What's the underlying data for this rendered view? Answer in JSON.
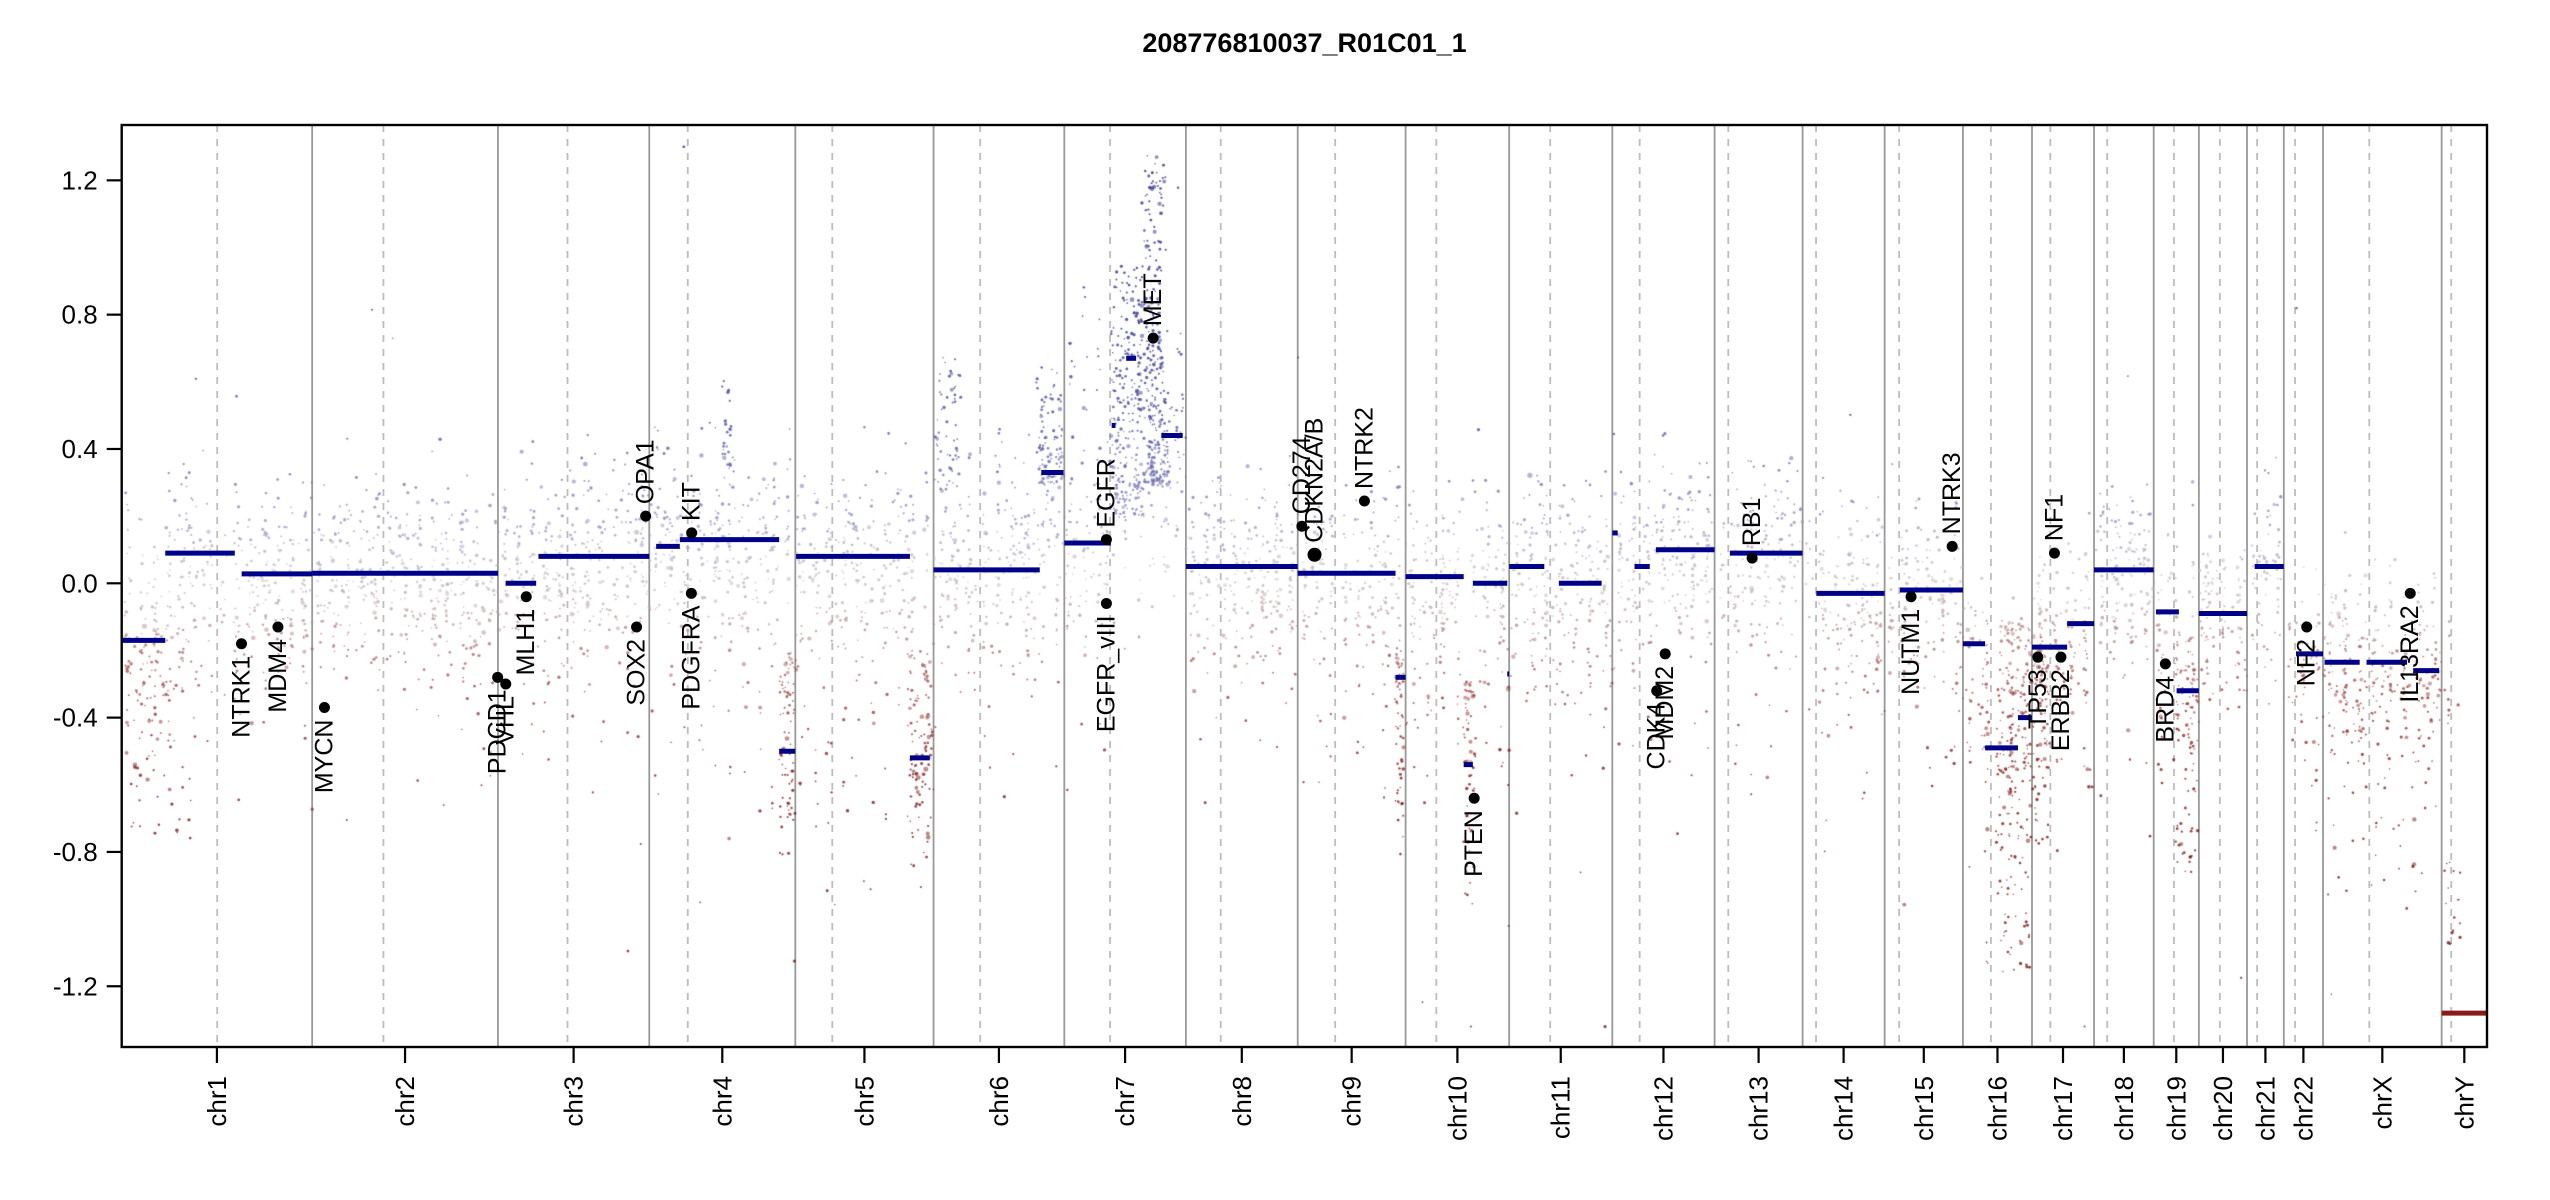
{
  "title": "208776810037_R01C01_1",
  "chart_data": {
    "type": "scatter",
    "title": "208776810037_R01C01_1",
    "xlabel": "",
    "ylabel": "",
    "ylim": [
      -1.38,
      1.37
    ],
    "grid": false,
    "y_tick_values": [
      1.2,
      0.8,
      0.4,
      0.0,
      -0.4,
      -0.8,
      -1.2
    ],
    "y_tick_labels": [
      "1.2",
      "0.8",
      "0.4",
      "0.0",
      "-0.4",
      "-0.8",
      "-1.2"
    ],
    "colors": {
      "segment": "#00008b",
      "segment_loss_deep": "#8b1a1a",
      "gene_dot": "#000000",
      "gene_label": "#000000",
      "boundary_line": "#999999",
      "centromere_line": "#bdbdbd",
      "axis": "#000000",
      "point_stops": [
        [
          -1.3,
          "#6b0b0b"
        ],
        [
          -0.6,
          "#7d1212"
        ],
        [
          -0.35,
          "#9a3838"
        ],
        [
          -0.18,
          "#ad7676"
        ],
        [
          -0.07,
          "#c2abab"
        ],
        [
          0.0,
          "#c4bcbc"
        ],
        [
          0.07,
          "#b7b4c9"
        ],
        [
          0.18,
          "#9595c2"
        ],
        [
          0.32,
          "#6c6cb2"
        ],
        [
          0.5,
          "#4444a2"
        ],
        [
          0.8,
          "#2a2a90"
        ],
        [
          1.35,
          "#1f1f85"
        ]
      ]
    },
    "genome": {
      "chromosomes": [
        {
          "name": "chr1",
          "length_mb": 249.25,
          "centromere_mb": 125.0,
          "gaps": [
            [
              120,
              144
            ]
          ]
        },
        {
          "name": "chr2",
          "length_mb": 243.2,
          "centromere_mb": 93.3,
          "gaps": [
            [
              90,
              97
            ]
          ]
        },
        {
          "name": "chr3",
          "length_mb": 198.02,
          "centromere_mb": 91.0,
          "gaps": [
            [
              88,
              94
            ]
          ]
        },
        {
          "name": "chr4",
          "length_mb": 191.15,
          "centromere_mb": 50.4,
          "gaps": [
            [
              48,
              53
            ]
          ]
        },
        {
          "name": "chr5",
          "length_mb": 180.92,
          "centromere_mb": 48.4,
          "gaps": [
            [
              45,
              51
            ]
          ]
        },
        {
          "name": "chr6",
          "length_mb": 171.12,
          "centromere_mb": 61.0,
          "gaps": [
            [
              58,
              64
            ]
          ]
        },
        {
          "name": "chr7",
          "length_mb": 159.14,
          "centromere_mb": 59.9,
          "gaps": [
            [
              57,
              62
            ]
          ]
        },
        {
          "name": "chr8",
          "length_mb": 146.36,
          "centromere_mb": 45.6,
          "gaps": [
            [
              43,
              48
            ]
          ]
        },
        {
          "name": "chr9",
          "length_mb": 141.21,
          "centromere_mb": 49.0,
          "gaps": [
            [
              39,
              66
            ]
          ]
        },
        {
          "name": "chr10",
          "length_mb": 135.53,
          "centromere_mb": 40.2,
          "gaps": [
            [
              38,
              43
            ]
          ]
        },
        {
          "name": "chr11",
          "length_mb": 135.01,
          "centromere_mb": 53.7,
          "gaps": [
            [
              51,
              56
            ]
          ]
        },
        {
          "name": "chr12",
          "length_mb": 133.85,
          "centromere_mb": 35.8,
          "gaps": [
            [
              33,
              38
            ]
          ]
        },
        {
          "name": "chr13",
          "length_mb": 115.17,
          "centromere_mb": 17.9,
          "gaps": [
            [
              0,
              19
            ]
          ]
        },
        {
          "name": "chr14",
          "length_mb": 107.35,
          "centromere_mb": 17.6,
          "gaps": [
            [
              0,
              19
            ]
          ]
        },
        {
          "name": "chr15",
          "length_mb": 102.53,
          "centromere_mb": 19.0,
          "gaps": [
            [
              0,
              20
            ]
          ]
        },
        {
          "name": "chr16",
          "length_mb": 90.35,
          "centromere_mb": 36.6,
          "gaps": [
            [
              34,
              47
            ]
          ],
          "density": 1.9
        },
        {
          "name": "chr17",
          "length_mb": 81.2,
          "centromere_mb": 24.0,
          "gaps": [
            [
              22,
              26
            ]
          ]
        },
        {
          "name": "chr18",
          "length_mb": 78.08,
          "centromere_mb": 17.2,
          "gaps": [
            [
              15,
              19
            ]
          ]
        },
        {
          "name": "chr19",
          "length_mb": 59.13,
          "centromere_mb": 26.5,
          "gaps": [
            [
              24,
              29
            ]
          ]
        },
        {
          "name": "chr20",
          "length_mb": 63.03,
          "centromere_mb": 27.5,
          "gaps": [
            [
              25,
              30
            ]
          ]
        },
        {
          "name": "chr21",
          "length_mb": 48.13,
          "centromere_mb": 13.2,
          "gaps": [
            [
              0,
              14
            ]
          ]
        },
        {
          "name": "chr22",
          "length_mb": 51.3,
          "centromere_mb": 14.7,
          "gaps": [
            [
              0,
              16
            ]
          ]
        },
        {
          "name": "chrX",
          "length_mb": 155.27,
          "centromere_mb": 60.6,
          "gaps": [
            [
              58,
              63
            ]
          ],
          "density": 2.2
        },
        {
          "name": "chrY",
          "length_mb": 59.37,
          "centromere_mb": 12.5,
          "gaps": [
            [
              0,
              2
            ],
            [
              28,
              59.4
            ]
          ],
          "density": 0
        }
      ]
    },
    "segments": [
      {
        "chr": "chr1",
        "start_mb": 0,
        "end_mb": 57,
        "value": -0.17
      },
      {
        "chr": "chr1",
        "start_mb": 57,
        "end_mb": 148,
        "value": 0.09
      },
      {
        "chr": "chr1",
        "start_mb": 157,
        "end_mb": 249.25,
        "value": 0.028
      },
      {
        "chr": "chr2",
        "start_mb": 0,
        "end_mb": 243.2,
        "value": 0.03
      },
      {
        "chr": "chr3",
        "start_mb": 10,
        "end_mb": 50,
        "value": 0.0
      },
      {
        "chr": "chr3",
        "start_mb": 53,
        "end_mb": 198,
        "value": 0.08
      },
      {
        "chr": "chr4",
        "start_mb": 9,
        "end_mb": 40,
        "value": 0.11
      },
      {
        "chr": "chr4",
        "start_mb": 40,
        "end_mb": 170,
        "value": 0.13
      },
      {
        "chr": "chr4",
        "start_mb": 170,
        "end_mb": 191.1,
        "value": -0.5
      },
      {
        "chr": "chr5",
        "start_mb": 1,
        "end_mb": 150,
        "value": 0.08
      },
      {
        "chr": "chr5",
        "start_mb": 150,
        "end_mb": 176,
        "value": -0.52
      },
      {
        "chr": "chr6",
        "start_mb": 0,
        "end_mb": 139,
        "value": 0.04
      },
      {
        "chr": "chr6",
        "start_mb": 141,
        "end_mb": 170,
        "value": 0.33
      },
      {
        "chr": "chr7",
        "start_mb": 0,
        "end_mb": 61,
        "value": 0.12
      },
      {
        "chr": "chr7",
        "start_mb": 62,
        "end_mb": 67,
        "value": 0.47
      },
      {
        "chr": "chr7",
        "start_mb": 81,
        "end_mb": 94,
        "value": 0.67
      },
      {
        "chr": "chr7",
        "start_mb": 127,
        "end_mb": 155,
        "value": 0.44
      },
      {
        "chr": "chr8",
        "start_mb": 0,
        "end_mb": 146.3,
        "value": 0.05
      },
      {
        "chr": "chr9",
        "start_mb": 0,
        "end_mb": 128,
        "value": 0.03
      },
      {
        "chr": "chr9",
        "start_mb": 128,
        "end_mb": 141.2,
        "value": -0.28
      },
      {
        "chr": "chr10",
        "start_mb": 0,
        "end_mb": 76,
        "value": 0.02
      },
      {
        "chr": "chr10",
        "start_mb": 76,
        "end_mb": 88,
        "value": -0.54
      },
      {
        "chr": "chr10",
        "start_mb": 88,
        "end_mb": 133,
        "value": 0.0
      },
      {
        "chr": "chr10",
        "start_mb": 133,
        "end_mb": 135.5,
        "value": -0.27
      },
      {
        "chr": "chr11",
        "start_mb": 0,
        "end_mb": 46,
        "value": 0.05
      },
      {
        "chr": "chr11",
        "start_mb": 65,
        "end_mb": 121,
        "value": 0.0
      },
      {
        "chr": "chr12",
        "start_mb": 0,
        "end_mb": 7,
        "value": 0.15
      },
      {
        "chr": "chr12",
        "start_mb": 29,
        "end_mb": 49,
        "value": 0.05
      },
      {
        "chr": "chr12",
        "start_mb": 57,
        "end_mb": 133.8,
        "value": 0.1
      },
      {
        "chr": "chr13",
        "start_mb": 20,
        "end_mb": 115,
        "value": 0.09
      },
      {
        "chr": "chr14",
        "start_mb": 18,
        "end_mb": 107.3,
        "value": -0.03
      },
      {
        "chr": "chr15",
        "start_mb": 20,
        "end_mb": 102.5,
        "value": -0.02
      },
      {
        "chr": "chr16",
        "start_mb": 0,
        "end_mb": 29,
        "value": -0.18
      },
      {
        "chr": "chr16",
        "start_mb": 29,
        "end_mb": 72,
        "value": -0.49
      },
      {
        "chr": "chr16",
        "start_mb": 72,
        "end_mb": 90.3,
        "value": -0.4
      },
      {
        "chr": "chr17",
        "start_mb": 0,
        "end_mb": 46,
        "value": -0.19
      },
      {
        "chr": "chr17",
        "start_mb": 46,
        "end_mb": 81.2,
        "value": -0.12
      },
      {
        "chr": "chr18",
        "start_mb": 0,
        "end_mb": 78.1,
        "value": 0.04
      },
      {
        "chr": "chr19",
        "start_mb": 3,
        "end_mb": 33,
        "value": -0.085
      },
      {
        "chr": "chr19",
        "start_mb": 30,
        "end_mb": 59.1,
        "value": -0.32
      },
      {
        "chr": "chr20",
        "start_mb": 0,
        "end_mb": 63,
        "value": -0.09
      },
      {
        "chr": "chr21",
        "start_mb": 10,
        "end_mb": 48.1,
        "value": 0.05
      },
      {
        "chr": "chr22",
        "start_mb": 16,
        "end_mb": 51.3,
        "value": -0.21
      },
      {
        "chr": "chrX",
        "start_mb": 2,
        "end_mb": 48,
        "value": -0.235
      },
      {
        "chr": "chrX",
        "start_mb": 57,
        "end_mb": 110,
        "value": -0.235
      },
      {
        "chr": "chrX",
        "start_mb": 118,
        "end_mb": 152,
        "value": -0.26
      },
      {
        "chr": "chrY",
        "start_mb": 0,
        "end_mb": 59.3,
        "value": -1.28,
        "color": "#8b1a1a"
      }
    ],
    "gene_annotations": [
      {
        "name": "NTRK1",
        "chr": "chr1",
        "mb": 156.8,
        "value": -0.18,
        "label_side": "below"
      },
      {
        "name": "MDM4",
        "chr": "chr1",
        "mb": 204.5,
        "value": -0.13,
        "label_side": "below"
      },
      {
        "name": "MYCN",
        "chr": "chr2",
        "mb": 16.1,
        "value": -0.37,
        "label_side": "below"
      },
      {
        "name": "PDCD1",
        "chr": "chr2",
        "mb": 242.8,
        "value": -0.28,
        "label_side": "below"
      },
      {
        "name": "VHL",
        "chr": "chr3",
        "mb": 10.2,
        "value": -0.3,
        "label_side": "below"
      },
      {
        "name": "MLH1",
        "chr": "chr3",
        "mb": 37.0,
        "value": -0.04,
        "label_side": "below"
      },
      {
        "name": "SOX2",
        "chr": "chr3",
        "mb": 181.4,
        "value": -0.13,
        "label_side": "below"
      },
      {
        "name": "OPA1",
        "chr": "chr3",
        "mb": 193.3,
        "value": 0.2,
        "label_side": "above"
      },
      {
        "name": "PDGFRA",
        "chr": "chr4",
        "mb": 55.1,
        "value": -0.03,
        "label_side": "below"
      },
      {
        "name": "KIT",
        "chr": "chr4",
        "mb": 55.5,
        "value": 0.15,
        "label_side": "above"
      },
      {
        "name": "EGFR",
        "chr": "chr7",
        "mb": 55.1,
        "value": 0.13,
        "label_side": "above"
      },
      {
        "name": "EGFR_vIII",
        "chr": "chr7",
        "mb": 55.1,
        "value": -0.06,
        "label_side": "below"
      },
      {
        "name": "MET",
        "chr": "chr7",
        "mb": 116.3,
        "value": 0.73,
        "label_side": "above"
      },
      {
        "name": "CD274",
        "chr": "chr9",
        "mb": 5.4,
        "value": 0.17,
        "label_side": "above"
      },
      {
        "name": "CDKN2A/B",
        "chr": "chr9",
        "mb": 22.0,
        "value": 0.085,
        "label_side": "above",
        "dot_radius": 7
      },
      {
        "name": "NTRK2",
        "chr": "chr9",
        "mb": 87.3,
        "value": 0.245,
        "label_side": "above"
      },
      {
        "name": "PTEN",
        "chr": "chr10",
        "mb": 89.7,
        "value": -0.64,
        "label_side": "below"
      },
      {
        "name": "CDK4",
        "chr": "chr12",
        "mb": 58.1,
        "value": -0.32,
        "label_side": "below"
      },
      {
        "name": "MDM2",
        "chr": "chr12",
        "mb": 69.2,
        "value": -0.21,
        "label_side": "below"
      },
      {
        "name": "RB1",
        "chr": "chr13",
        "mb": 49.1,
        "value": 0.075,
        "label_side": "above"
      },
      {
        "name": "NUTM1",
        "chr": "chr15",
        "mb": 34.6,
        "value": -0.04,
        "label_side": "below"
      },
      {
        "name": "NTRK3",
        "chr": "chr15",
        "mb": 88.4,
        "value": 0.11,
        "label_side": "above"
      },
      {
        "name": "TP53",
        "chr": "chr17",
        "mb": 7.6,
        "value": -0.22,
        "label_side": "below"
      },
      {
        "name": "NF1",
        "chr": "chr17",
        "mb": 29.4,
        "value": 0.09,
        "label_side": "above"
      },
      {
        "name": "ERBB2",
        "chr": "chr17",
        "mb": 37.9,
        "value": -0.22,
        "label_side": "below"
      },
      {
        "name": "BRD4",
        "chr": "chr19",
        "mb": 15.3,
        "value": -0.24,
        "label_side": "below"
      },
      {
        "name": "NF2",
        "chr": "chr22",
        "mb": 30.0,
        "value": -0.13,
        "label_side": "below"
      },
      {
        "name": "IL13RA2",
        "chr": "chrX",
        "mb": 114.2,
        "value": -0.03,
        "label_side": "below"
      }
    ],
    "point_clusters": [
      {
        "chr": "chr4",
        "start_mb": 96,
        "end_mb": 107,
        "v_lo": 0.35,
        "v_hi": 0.62,
        "n": 22,
        "bias": 1.2
      },
      {
        "chr": "chr6",
        "start_mb": 2,
        "end_mb": 34,
        "v_lo": 0.3,
        "v_hi": 0.68,
        "n": 55,
        "bias": 1.6
      },
      {
        "chr": "chr6",
        "start_mb": 136,
        "end_mb": 168,
        "v_lo": 0.3,
        "v_hi": 0.65,
        "n": 75,
        "bias": 1.5
      },
      {
        "chr": "chr7",
        "start_mb": 62,
        "end_mb": 104,
        "v_lo": 0.2,
        "v_hi": 0.95,
        "n": 200,
        "bias": 1.7
      },
      {
        "chr": "chr7",
        "start_mb": 104,
        "end_mb": 134,
        "v_lo": 0.3,
        "v_hi": 1.27,
        "n": 240,
        "bias": 1.8
      },
      {
        "chr": "chr16",
        "start_mb": 30,
        "end_mb": 90,
        "v_lo": -1.15,
        "v_hi": -0.12,
        "n": 260,
        "bias": 1.7
      },
      {
        "chr": "chr17",
        "start_mb": 1,
        "end_mb": 25,
        "v_lo": -0.78,
        "v_hi": -0.2,
        "n": 80,
        "bias": 1.6
      },
      {
        "chr": "chr5",
        "start_mb": 148,
        "end_mb": 176,
        "v_lo": -0.8,
        "v_hi": -0.22,
        "n": 80,
        "bias": 1.6
      },
      {
        "chr": "chr4",
        "start_mb": 170,
        "end_mb": 191,
        "v_lo": -0.74,
        "v_hi": -0.22,
        "n": 60,
        "bias": 1.6
      },
      {
        "chr": "chr10",
        "start_mb": 76,
        "end_mb": 90,
        "v_lo": -1.0,
        "v_hi": -0.3,
        "n": 45,
        "bias": 1.6
      },
      {
        "chr": "chr9",
        "start_mb": 128,
        "end_mb": 141,
        "v_lo": -0.8,
        "v_hi": -0.2,
        "n": 45,
        "bias": 1.5
      },
      {
        "chr": "chr1",
        "start_mb": 0,
        "end_mb": 90,
        "v_lo": -0.75,
        "v_hi": -0.15,
        "n": 70,
        "bias": 1.7
      },
      {
        "chr": "chr19",
        "start_mb": 30,
        "end_mb": 59,
        "v_lo": -0.85,
        "v_hi": -0.25,
        "n": 60,
        "bias": 1.7
      },
      {
        "chr": "chrX",
        "start_mb": 3,
        "end_mb": 152,
        "v_lo": -0.95,
        "v_hi": -0.3,
        "n": 70,
        "bias": 1.8
      },
      {
        "chr": "chrY",
        "start_mb": 2,
        "end_mb": 27,
        "v_lo": -1.08,
        "v_hi": -0.82,
        "n": 16,
        "bias": 1.0
      },
      {
        "chr": "chrY",
        "start_mb": 2,
        "end_mb": 27,
        "v_lo": -0.45,
        "v_hi": -0.1,
        "n": 8,
        "bias": 1.0
      }
    ]
  }
}
